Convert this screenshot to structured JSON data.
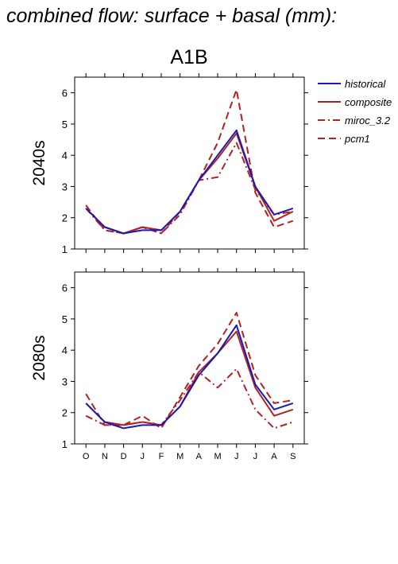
{
  "figure": {
    "title": "combined flow: surface + basal (mm):",
    "scenario": "A1B",
    "row_labels": [
      "2040s",
      "2080s"
    ]
  },
  "legend": [
    {
      "name": "historical",
      "color": "#1a1ab3",
      "dash": "solid"
    },
    {
      "name": "composite",
      "color": "#b22222",
      "dash": "solid"
    },
    {
      "name": "miroc_3.2",
      "color": "#b22222",
      "dash": "dashdot"
    },
    {
      "name": "pcm1",
      "color": "#b22222",
      "dash": "dash"
    }
  ],
  "chart_data": [
    {
      "type": "line",
      "title": "2040s",
      "categories": [
        "O",
        "N",
        "D",
        "J",
        "F",
        "M",
        "A",
        "M",
        "J",
        "J",
        "A",
        "S"
      ],
      "ylim": [
        1,
        6.5
      ],
      "yticks": [
        1,
        2,
        3,
        4,
        5,
        6
      ],
      "grid": false,
      "legend_position": "right",
      "series": [
        {
          "name": "historical",
          "values": [
            2.3,
            1.7,
            1.5,
            1.6,
            1.6,
            2.2,
            3.2,
            4.0,
            4.8,
            3.0,
            2.1,
            2.3
          ]
        },
        {
          "name": "composite",
          "values": [
            2.3,
            1.7,
            1.5,
            1.7,
            1.6,
            2.2,
            3.2,
            3.9,
            4.7,
            3.0,
            1.9,
            2.2
          ]
        },
        {
          "name": "miroc_3.2",
          "values": [
            2.3,
            1.6,
            1.5,
            1.7,
            1.5,
            2.1,
            3.2,
            3.3,
            4.4,
            2.9,
            2.1,
            2.2
          ]
        },
        {
          "name": "pcm1",
          "values": [
            2.4,
            1.6,
            1.5,
            1.7,
            1.5,
            2.2,
            3.2,
            4.4,
            6.1,
            2.8,
            1.7,
            1.9
          ]
        }
      ]
    },
    {
      "type": "line",
      "title": "2080s",
      "categories": [
        "O",
        "N",
        "D",
        "J",
        "F",
        "M",
        "A",
        "M",
        "J",
        "J",
        "A",
        "S"
      ],
      "ylim": [
        1,
        6.5
      ],
      "yticks": [
        1,
        2,
        3,
        4,
        5,
        6
      ],
      "grid": false,
      "legend_position": "right",
      "series": [
        {
          "name": "historical",
          "values": [
            2.3,
            1.7,
            1.5,
            1.6,
            1.6,
            2.2,
            3.2,
            3.9,
            4.8,
            2.9,
            2.1,
            2.3
          ]
        },
        {
          "name": "composite",
          "values": [
            2.3,
            1.7,
            1.6,
            1.7,
            1.6,
            2.2,
            3.3,
            3.9,
            4.6,
            2.8,
            1.9,
            2.1
          ]
        },
        {
          "name": "miroc_3.2",
          "values": [
            1.9,
            1.6,
            1.6,
            1.7,
            1.6,
            2.4,
            3.3,
            2.8,
            3.4,
            2.1,
            1.5,
            1.7
          ]
        },
        {
          "name": "pcm1",
          "values": [
            2.6,
            1.6,
            1.6,
            1.9,
            1.5,
            2.5,
            3.5,
            4.2,
            5.2,
            3.2,
            2.3,
            2.4
          ]
        }
      ]
    }
  ]
}
